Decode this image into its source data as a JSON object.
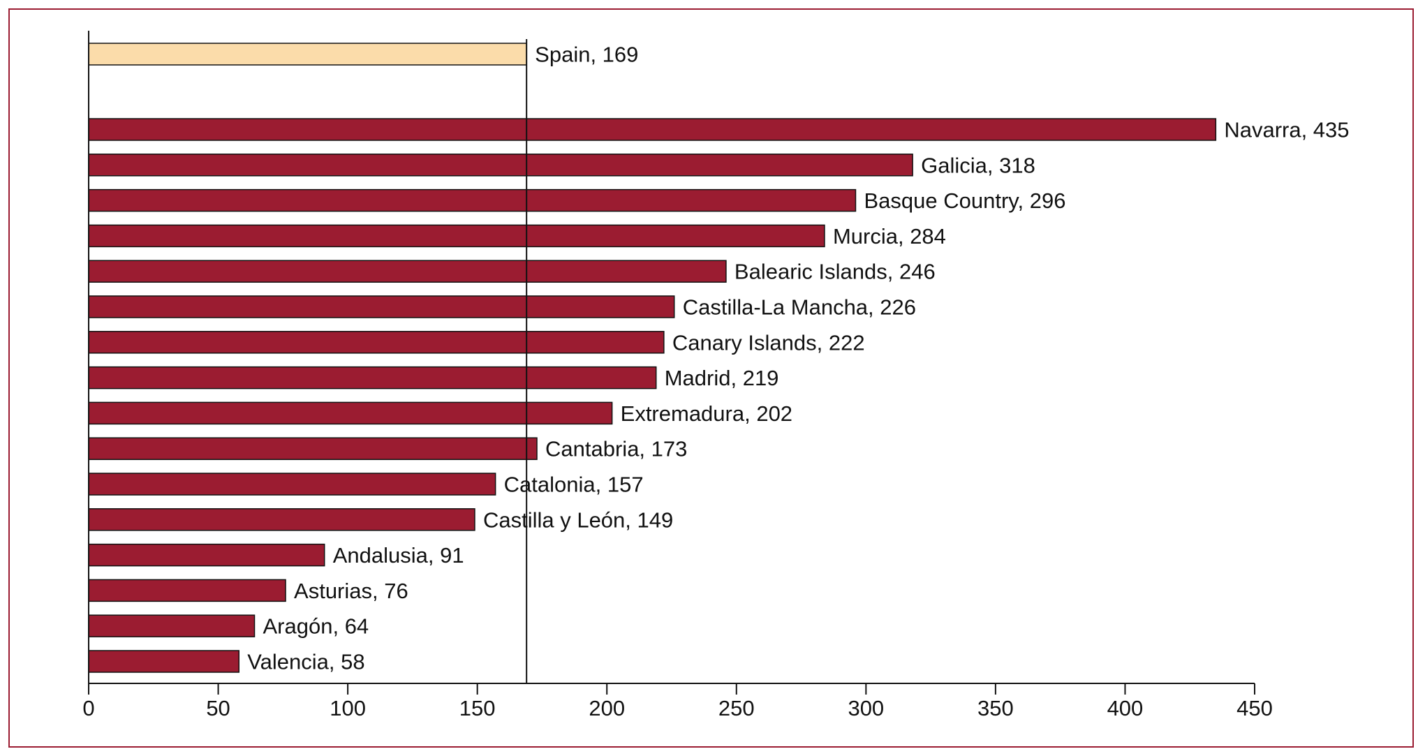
{
  "chart_data": {
    "type": "bar",
    "orientation": "horizontal",
    "reference": {
      "label": "Spain, 169",
      "name": "Spain",
      "value": 169,
      "color": "#fbdcaa"
    },
    "reference_line_value": 169,
    "bar_color": "#9b1c31",
    "bars": [
      {
        "name": "Navarra",
        "value": 435,
        "label": "Navarra, 435"
      },
      {
        "name": "Galicia",
        "value": 318,
        "label": "Galicia, 318"
      },
      {
        "name": "Basque Country",
        "value": 296,
        "label": "Basque Country, 296"
      },
      {
        "name": "Murcia",
        "value": 284,
        "label": "Murcia, 284"
      },
      {
        "name": "Balearic Islands",
        "value": 246,
        "label": "Balearic Islands, 246"
      },
      {
        "name": "Castilla-La Mancha",
        "value": 226,
        "label": "Castilla-La Mancha, 226"
      },
      {
        "name": "Canary Islands",
        "value": 222,
        "label": "Canary Islands, 222"
      },
      {
        "name": "Madrid",
        "value": 219,
        "label": "Madrid, 219"
      },
      {
        "name": "Extremadura",
        "value": 202,
        "label": "Extremadura, 202"
      },
      {
        "name": "Cantabria",
        "value": 173,
        "label": "Cantabria, 173"
      },
      {
        "name": "Catalonia",
        "value": 157,
        "label": "Catalonia, 157"
      },
      {
        "name": "Castilla y León",
        "value": 149,
        "label": "Castilla y León, 149"
      },
      {
        "name": "Andalusia",
        "value": 91,
        "label": "Andalusia, 91"
      },
      {
        "name": "Asturias",
        "value": 76,
        "label": "Asturias, 76"
      },
      {
        "name": "Aragón",
        "value": 64,
        "label": "Aragón, 64"
      },
      {
        "name": "Valencia",
        "value": 58,
        "label": "Valencia, 58"
      }
    ],
    "xlim": [
      0,
      450
    ],
    "xticks": [
      "0",
      "50",
      "100",
      "150",
      "200",
      "250",
      "300",
      "350",
      "400",
      "450"
    ],
    "title": "",
    "xlabel": "",
    "ylabel": "",
    "grid": false,
    "legend": "none"
  }
}
